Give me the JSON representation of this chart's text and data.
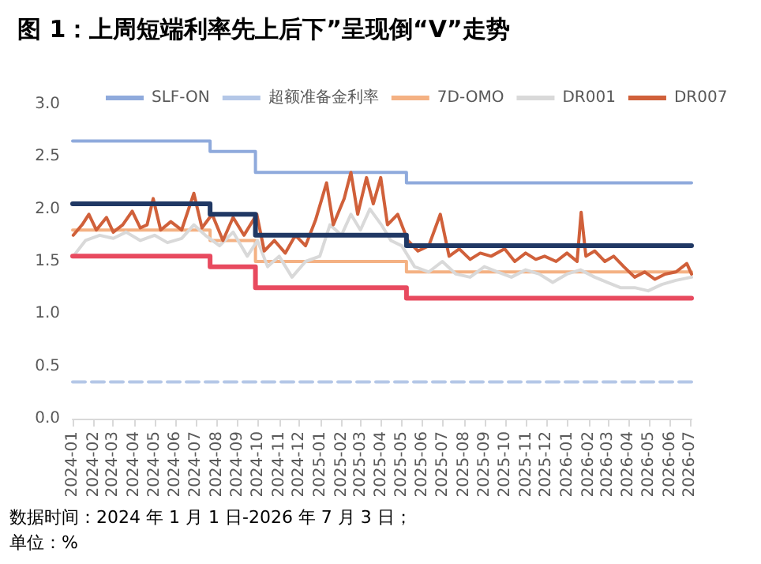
{
  "chart_data": {
    "type": "line",
    "title": "图 1：上周短端利率先上后下”呈现倒“V”走势",
    "annotations": [
      "数据时间：2024 年 1 月 1 日-2026 年 7 月 3 日；",
      "单位：%"
    ],
    "xlim": [
      "2024-01-01",
      "2026-07-03"
    ],
    "xticks": [
      "2024-01",
      "2024-02",
      "2024-03",
      "2024-04",
      "2024-05",
      "2024-06",
      "2024-07",
      "2024-08",
      "2024-09",
      "2024-10",
      "2024-11",
      "2024-12",
      "2025-01",
      "2025-02",
      "2025-03",
      "2025-04",
      "2025-05",
      "2025-06",
      "2025-07",
      "2025-08",
      "2025-09",
      "2025-10",
      "2025-11",
      "2025-12",
      "2026-01",
      "2026-02",
      "2026-03",
      "2026-04",
      "2026-05",
      "2026-06",
      "2026-07"
    ],
    "ylim": [
      0,
      3
    ],
    "yticks": [
      {
        "value": 0,
        "label": "0.0"
      },
      {
        "value": 0.5,
        "label": "0.5"
      },
      {
        "value": 1,
        "label": "1.0"
      },
      {
        "value": 1.5,
        "label": "1.5"
      },
      {
        "value": 2,
        "label": "2.0"
      },
      {
        "value": 2.5,
        "label": "2.5"
      },
      {
        "value": 3,
        "label": "3.0"
      }
    ],
    "grid": false,
    "legend": "top",
    "marker": "none",
    "series": [
      {
        "name": "SLF-ON",
        "type": "step",
        "color": "#8faadc",
        "x": [
          "2024-01-01",
          "2024-07-22",
          "2024-09-27",
          "2025-05-08",
          "2026-07-03"
        ],
        "values": [
          2.65,
          2.55,
          2.35,
          2.25,
          2.25
        ]
      },
      {
        "name": "超额准备金利率",
        "color": "#b4c7e7",
        "line_style": "dashed",
        "x": [
          "2024-01-01",
          "2026-07-03"
        ],
        "values": [
          0.35,
          0.35
        ]
      },
      {
        "name": "7D-OMO",
        "type": "step",
        "color": "#f4b183",
        "x": [
          "2024-01-01",
          "2024-07-22",
          "2024-09-27",
          "2025-05-08",
          "2026-07-03"
        ],
        "values": [
          1.8,
          1.7,
          1.5,
          1.4,
          1.4
        ]
      },
      {
        "name": "DR001",
        "color": "#d9d9d9",
        "x": [
          "2024-01-02",
          "2024-01-20",
          "2024-02-10",
          "2024-03-01",
          "2024-03-20",
          "2024-04-10",
          "2024-05-01",
          "2024-05-20",
          "2024-06-10",
          "2024-06-28",
          "2024-07-15",
          "2024-08-05",
          "2024-08-25",
          "2024-09-15",
          "2024-09-30",
          "2024-10-15",
          "2024-11-01",
          "2024-11-20",
          "2024-12-10",
          "2024-12-31",
          "2025-01-15",
          "2025-02-01",
          "2025-02-15",
          "2025-03-01",
          "2025-03-15",
          "2025-04-01",
          "2025-04-15",
          "2025-05-01",
          "2025-05-20",
          "2025-06-10",
          "2025-06-30",
          "2025-07-20",
          "2025-08-10",
          "2025-08-31",
          "2025-09-20",
          "2025-10-10",
          "2025-10-31",
          "2025-11-20",
          "2025-12-10",
          "2025-12-31",
          "2026-01-20",
          "2026-02-10",
          "2026-03-01",
          "2026-03-20",
          "2026-04-10",
          "2026-04-30",
          "2026-05-20",
          "2026-06-10",
          "2026-07-03"
        ],
        "values": [
          1.55,
          1.7,
          1.75,
          1.72,
          1.78,
          1.7,
          1.75,
          1.68,
          1.72,
          1.85,
          1.75,
          1.65,
          1.78,
          1.55,
          1.7,
          1.45,
          1.55,
          1.35,
          1.5,
          1.55,
          1.85,
          1.75,
          1.95,
          1.8,
          2.0,
          1.85,
          1.7,
          1.65,
          1.45,
          1.4,
          1.5,
          1.38,
          1.35,
          1.45,
          1.4,
          1.35,
          1.42,
          1.38,
          1.3,
          1.38,
          1.42,
          1.35,
          1.3,
          1.25,
          1.25,
          1.22,
          1.28,
          1.32,
          1.35
        ]
      },
      {
        "name": "DR007",
        "color": "#d0603a",
        "x": [
          "2024-01-02",
          "2024-01-15",
          "2024-01-25",
          "2024-02-05",
          "2024-02-20",
          "2024-03-01",
          "2024-03-15",
          "2024-03-29",
          "2024-04-10",
          "2024-04-20",
          "2024-04-29",
          "2024-05-10",
          "2024-05-25",
          "2024-06-10",
          "2024-06-28",
          "2024-07-10",
          "2024-07-25",
          "2024-08-10",
          "2024-08-25",
          "2024-09-10",
          "2024-09-29",
          "2024-10-10",
          "2024-10-25",
          "2024-11-10",
          "2024-11-25",
          "2024-12-10",
          "2024-12-25",
          "2025-01-10",
          "2025-01-20",
          "2025-02-05",
          "2025-02-15",
          "2025-02-25",
          "2025-03-10",
          "2025-03-20",
          "2025-03-31",
          "2025-04-10",
          "2025-04-25",
          "2025-05-10",
          "2025-05-25",
          "2025-06-10",
          "2025-06-27",
          "2025-07-10",
          "2025-07-25",
          "2025-08-10",
          "2025-08-25",
          "2025-09-10",
          "2025-09-30",
          "2025-10-15",
          "2025-10-31",
          "2025-11-15",
          "2025-11-28",
          "2025-12-15",
          "2025-12-31",
          "2026-01-15",
          "2026-01-21",
          "2026-01-28",
          "2026-02-10",
          "2026-02-25",
          "2026-03-10",
          "2026-03-25",
          "2026-04-10",
          "2026-04-25",
          "2026-05-10",
          "2026-05-25",
          "2026-06-10",
          "2026-06-26",
          "2026-07-03"
        ],
        "values": [
          1.75,
          1.85,
          1.95,
          1.8,
          1.92,
          1.78,
          1.85,
          1.98,
          1.82,
          1.85,
          2.1,
          1.8,
          1.88,
          1.8,
          2.15,
          1.82,
          1.95,
          1.7,
          1.92,
          1.75,
          1.95,
          1.6,
          1.7,
          1.58,
          1.75,
          1.65,
          1.9,
          2.25,
          1.85,
          2.1,
          2.35,
          1.95,
          2.3,
          2.05,
          2.3,
          1.85,
          1.95,
          1.7,
          1.6,
          1.65,
          1.95,
          1.55,
          1.62,
          1.52,
          1.58,
          1.55,
          1.62,
          1.5,
          1.58,
          1.52,
          1.55,
          1.5,
          1.58,
          1.5,
          1.97,
          1.55,
          1.6,
          1.5,
          1.55,
          1.45,
          1.35,
          1.4,
          1.33,
          1.38,
          1.4,
          1.48,
          1.38
        ]
      },
      {
        "type": "step",
        "color": "#203864",
        "x": [
          "2024-01-01",
          "2024-07-22",
          "2024-09-27",
          "2025-05-08",
          "2026-07-03"
        ],
        "values": [
          2.05,
          1.95,
          1.75,
          1.65,
          1.65
        ]
      },
      {
        "type": "step",
        "color": "#e84a5f",
        "x": [
          "2024-01-01",
          "2024-07-22",
          "2024-09-27",
          "2025-05-08",
          "2026-07-03"
        ],
        "values": [
          1.55,
          1.45,
          1.25,
          1.15,
          1.15
        ]
      }
    ]
  }
}
